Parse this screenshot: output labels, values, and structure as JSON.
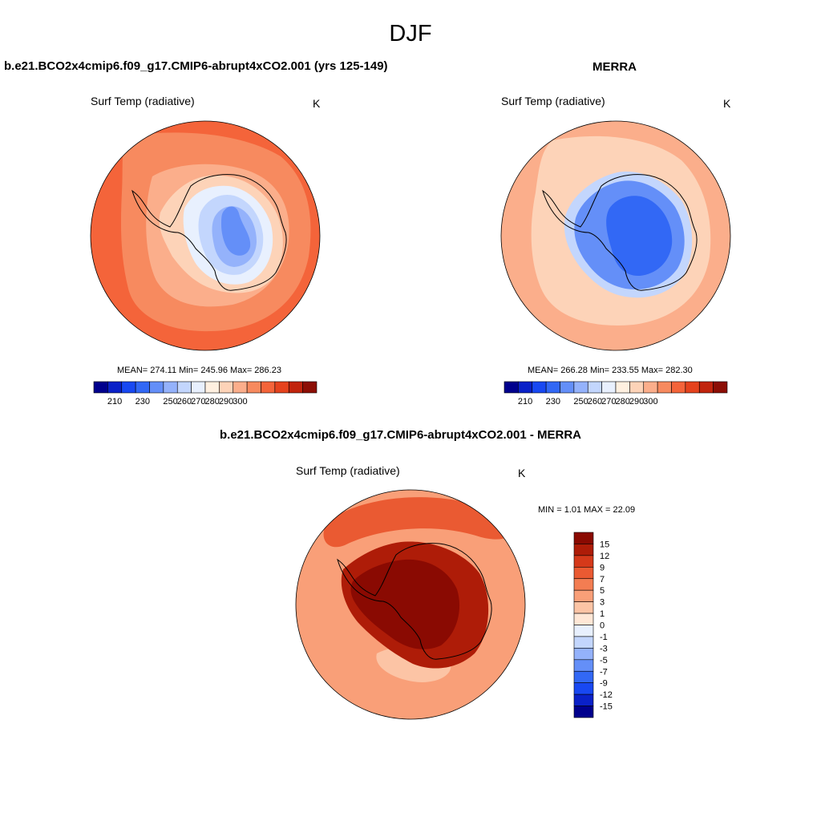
{
  "figure_title": "DJF",
  "palette": {
    "abs": [
      "#00008d",
      "#0a21c8",
      "#1848f2",
      "#3268f5",
      "#648ff8",
      "#94b2fb",
      "#c3d6fd",
      "#e8f0fe",
      "#fff0e0",
      "#fdd3b8",
      "#fbae8b",
      "#f78a5f",
      "#f4643a",
      "#e5421d",
      "#c1240d",
      "#8c0e05"
    ],
    "diff": [
      "#00008d",
      "#0a21c8",
      "#1848f2",
      "#3268f5",
      "#648ff8",
      "#94b2fb",
      "#c3d6fd",
      "#e8f0fe",
      "#ffe7d6",
      "#fcc4a5",
      "#f99f78",
      "#f37d52",
      "#ea5a32",
      "#d5391a",
      "#ae1c08",
      "#8a0a02"
    ]
  },
  "panels": {
    "model": {
      "title": "b.e21.BCO2x4cmip6.f09_g17.CMIP6-abrupt4xCO2.001 (yrs 125-149)",
      "variable": "Surf Temp (radiative)",
      "units": "K",
      "stats": "MEAN= 274.11  Min= 245.96  Max= 286.23",
      "mean": 274.11,
      "min": 245.96,
      "max": 286.23
    },
    "obs": {
      "title": "MERRA",
      "variable": "Surf Temp (radiative)",
      "units": "K",
      "stats": "MEAN= 266.28  Min= 233.55  Max= 282.30",
      "mean": 266.28,
      "min": 233.55,
      "max": 282.3
    },
    "diff": {
      "title": "b.e21.BCO2x4cmip6.f09_g17.CMIP6-abrupt4xCO2.001 - MERRA",
      "variable": "Surf Temp (radiative)",
      "units": "K",
      "stats": "MIN =   1.01 MAX =  22.09",
      "min": 1.01,
      "max": 22.09
    }
  },
  "colorbar_abs": {
    "labels": [
      "210",
      "230",
      "250",
      "260",
      "270",
      "280",
      "290",
      "300"
    ]
  },
  "colorbar_diff": {
    "labels": [
      "15",
      "12",
      "9",
      "7",
      "5",
      "3",
      "1",
      "0",
      "-1",
      "-3",
      "-5",
      "-7",
      "-9",
      "-12",
      "-15"
    ]
  }
}
